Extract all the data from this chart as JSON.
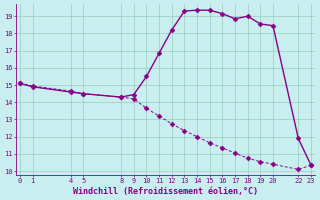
{
  "xlabel": "Windchill (Refroidissement éolien,°C)",
  "background_color": "#c8eef0",
  "line_color": "#880088",
  "grid_color": "#99ccbb",
  "x_values": [
    0,
    1,
    4,
    5,
    8,
    9,
    10,
    11,
    12,
    13,
    14,
    15,
    16,
    17,
    18,
    19,
    20,
    22,
    23
  ],
  "y1_values": [
    15.1,
    14.9,
    14.6,
    14.5,
    14.3,
    14.45,
    15.5,
    16.85,
    18.2,
    19.3,
    19.35,
    19.35,
    19.15,
    18.85,
    19.0,
    18.55,
    18.45,
    11.9,
    10.35
  ],
  "y2_values": [
    15.1,
    14.95,
    14.65,
    14.5,
    14.3,
    14.2,
    13.65,
    13.2,
    12.75,
    12.35,
    12.0,
    11.65,
    11.35,
    11.05,
    10.75,
    10.55,
    10.4,
    10.1,
    10.35
  ],
  "ylim_min": 9.8,
  "ylim_max": 19.7,
  "xlim_min": -0.3,
  "xlim_max": 23.3,
  "yticks": [
    10,
    11,
    12,
    13,
    14,
    15,
    16,
    17,
    18,
    19
  ],
  "xticks": [
    0,
    1,
    4,
    5,
    8,
    9,
    10,
    11,
    12,
    13,
    14,
    15,
    16,
    17,
    18,
    19,
    20,
    22,
    23
  ],
  "markersize": 2.5,
  "linewidth": 1.0,
  "tick_fontsize": 5.0,
  "xlabel_fontsize": 6.0
}
